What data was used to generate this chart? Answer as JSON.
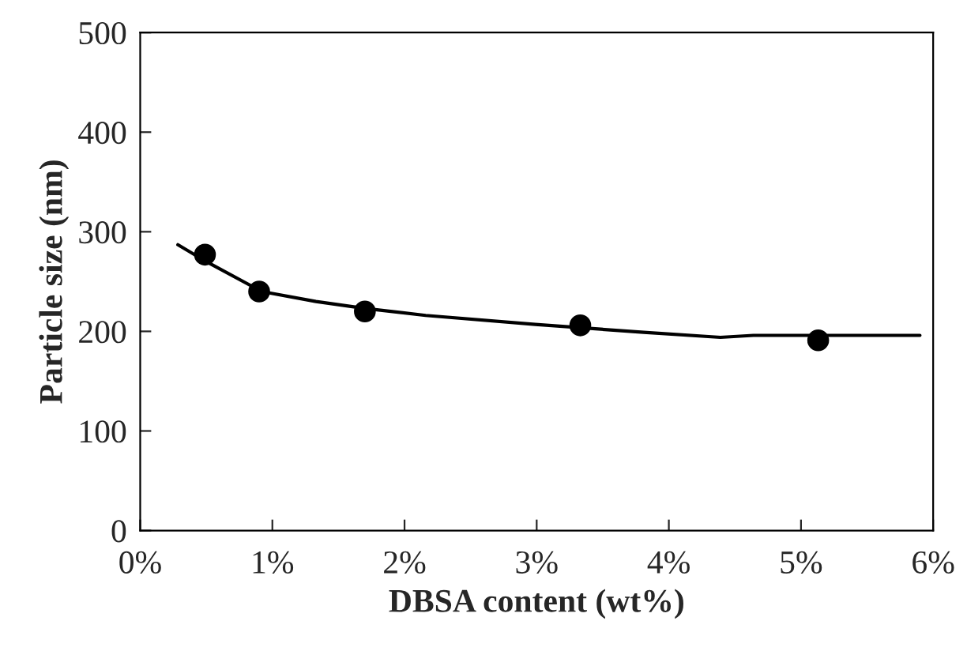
{
  "chart_data": {
    "type": "scatter",
    "xlabel": "DBSA content (wt%)",
    "ylabel": "Particle size (nm)",
    "xlim": [
      0,
      0.06
    ],
    "ylim": [
      0,
      500
    ],
    "xticks": [
      {
        "value": 0,
        "label": "0%"
      },
      {
        "value": 0.01,
        "label": "1%"
      },
      {
        "value": 0.02,
        "label": "2%"
      },
      {
        "value": 0.03,
        "label": "3%"
      },
      {
        "value": 0.04,
        "label": "4%"
      },
      {
        "value": 0.05,
        "label": "5%"
      },
      {
        "value": 0.06,
        "label": "6%"
      }
    ],
    "yticks": [
      0,
      100,
      200,
      300,
      400,
      500
    ],
    "grid": false,
    "legend": false,
    "series": [
      {
        "marker": "circle",
        "color": "#000000",
        "x": [
          0.0049,
          0.009,
          0.017,
          0.0333,
          0.0513
        ],
        "values": [
          277,
          240,
          220,
          206,
          191
        ]
      },
      {
        "type": "line",
        "marker": "none",
        "line_style": "solid",
        "color": "#000000",
        "x": [
          0.00285,
          0.005,
          0.0092,
          0.0133,
          0.017,
          0.0216,
          0.0299,
          0.0381,
          0.0439,
          0.0464,
          0.059
        ],
        "values": [
          287,
          270,
          240,
          230,
          223,
          216,
          207,
          199,
          194,
          196,
          196
        ]
      }
    ]
  }
}
